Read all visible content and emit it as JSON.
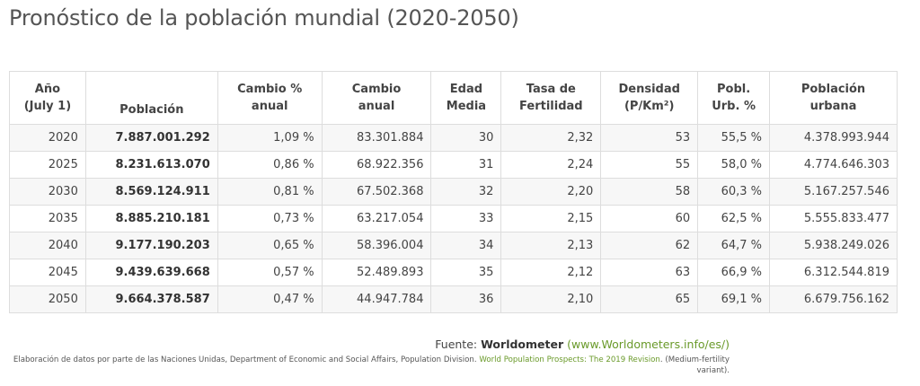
{
  "title": "Pronóstico de la población mundial (2020-2050)",
  "table": {
    "headers": {
      "year_line1": "Año",
      "year_line2": "(July 1)",
      "population": "Población",
      "change_pct_line1": "Cambio %",
      "change_pct_line2": "anual",
      "change_line1": "Cambio",
      "change_line2": "anual",
      "median_age_line1": "Edad",
      "median_age_line2": "Media",
      "fertility_line1": "Tasa de",
      "fertility_line2": "Fertilidad",
      "density_line1": "Densidad",
      "density_line2": "(P/Km²)",
      "urban_pct_line1": "Pobl.",
      "urban_pct_line2": "Urb. %",
      "urban_pop_line1": "Población",
      "urban_pop_line2": "urbana"
    },
    "rows": [
      {
        "year": "2020",
        "population": "7.887.001.292",
        "change_pct": "1,09 %",
        "change": "83.301.884",
        "median_age": "30",
        "fertility": "2,32",
        "density": "53",
        "urban_pct": "55,5 %",
        "urban_pop": "4.378.993.944"
      },
      {
        "year": "2025",
        "population": "8.231.613.070",
        "change_pct": "0,86 %",
        "change": "68.922.356",
        "median_age": "31",
        "fertility": "2,24",
        "density": "55",
        "urban_pct": "58,0 %",
        "urban_pop": "4.774.646.303"
      },
      {
        "year": "2030",
        "population": "8.569.124.911",
        "change_pct": "0,81 %",
        "change": "67.502.368",
        "median_age": "32",
        "fertility": "2,20",
        "density": "58",
        "urban_pct": "60,3 %",
        "urban_pop": "5.167.257.546"
      },
      {
        "year": "2035",
        "population": "8.885.210.181",
        "change_pct": "0,73 %",
        "change": "63.217.054",
        "median_age": "33",
        "fertility": "2,15",
        "density": "60",
        "urban_pct": "62,5 %",
        "urban_pop": "5.555.833.477"
      },
      {
        "year": "2040",
        "population": "9.177.190.203",
        "change_pct": "0,65 %",
        "change": "58.396.004",
        "median_age": "34",
        "fertility": "2,13",
        "density": "62",
        "urban_pct": "64,7 %",
        "urban_pop": "5.938.249.026"
      },
      {
        "year": "2045",
        "population": "9.439.639.668",
        "change_pct": "0,57 %",
        "change": "52.489.893",
        "median_age": "35",
        "fertility": "2,12",
        "density": "63",
        "urban_pct": "66,9 %",
        "urban_pop": "6.312.544.819"
      },
      {
        "year": "2050",
        "population": "9.664.378.587",
        "change_pct": "0,47 %",
        "change": "44.947.784",
        "median_age": "36",
        "fertility": "2,10",
        "density": "65",
        "urban_pct": "69,1 %",
        "urban_pop": "6.679.756.162"
      }
    ]
  },
  "source": {
    "prefix": "Fuente: ",
    "name": "Worldometer",
    "link": "(www.Worldometers.info/es/)"
  },
  "note": {
    "text": "Elaboración de datos por parte de las Naciones Unidas, Department of Economic and Social Affairs, Population Division. ",
    "link": "World Population Prospects: The 2019 Revision",
    "suffix": ". (Medium-fertility variant)."
  },
  "colors": {
    "link_green": "#6a9a2a",
    "row_stripe": "#f7f7f7",
    "border": "#dddddd"
  }
}
